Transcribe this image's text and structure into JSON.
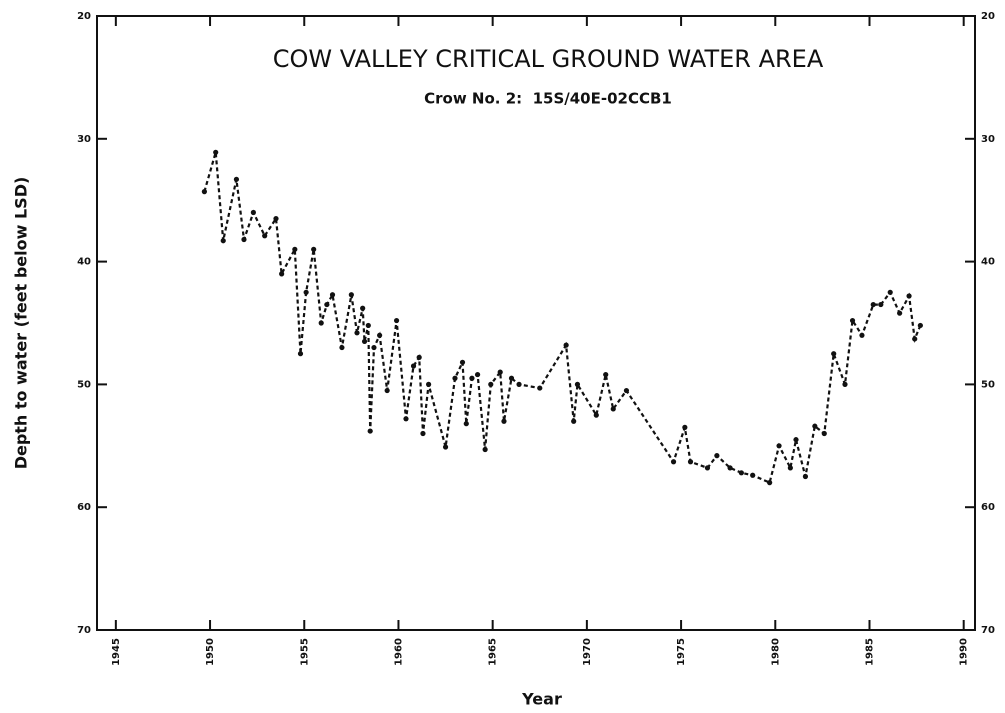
{
  "chart_data": {
    "type": "line",
    "title": "COW VALLEY CRITICAL GROUND WATER AREA",
    "subtitle": "Crow No. 2:  15S/40E-02CCB1",
    "x_label": "Year",
    "y_label": "Depth to water (feet below LSD)",
    "xlim": [
      1944,
      1990.6
    ],
    "xticks": [
      1945,
      1950,
      1955,
      1960,
      1965,
      1970,
      1975,
      1980,
      1985,
      1990
    ],
    "ylim": [
      20,
      70
    ],
    "yticks": [
      20,
      30,
      40,
      50,
      60,
      70
    ],
    "y_inverted": true,
    "grid": false,
    "series": [
      {
        "color": "#111111",
        "x": [
          1949.7,
          1950.3,
          1950.7,
          1951.4,
          1951.8,
          1952.3,
          1952.9,
          1953.5,
          1953.8,
          1954.5,
          1954.8,
          1955.1,
          1955.5,
          1955.9,
          1956.2,
          1956.5,
          1957.0,
          1957.5,
          1957.8,
          1958.1,
          1958.2,
          1958.4,
          1958.5,
          1958.7,
          1959.0,
          1959.4,
          1959.9,
          1960.4,
          1960.8,
          1961.1,
          1961.3,
          1961.6,
          1962.5,
          1963.0,
          1963.4,
          1963.6,
          1963.9,
          1964.2,
          1964.6,
          1964.9,
          1965.4,
          1965.6,
          1966.0,
          1966.4,
          1967.5,
          1968.9,
          1969.3,
          1969.5,
          1970.5,
          1971.0,
          1971.4,
          1972.1,
          1974.6,
          1975.2,
          1975.5,
          1976.4,
          1976.9,
          1977.6,
          1978.2,
          1978.8,
          1979.7,
          1980.2,
          1980.8,
          1981.1,
          1981.6,
          1982.1,
          1982.6,
          1983.1,
          1983.7,
          1984.1,
          1984.6,
          1985.2,
          1985.6,
          1986.1,
          1986.6,
          1987.1,
          1987.4,
          1987.7
        ],
        "values": [
          34.3,
          31.1,
          38.3,
          33.3,
          38.2,
          36.0,
          37.9,
          36.5,
          41.0,
          39.0,
          47.5,
          42.5,
          39.0,
          45.0,
          43.5,
          42.7,
          47.0,
          42.7,
          45.8,
          43.8,
          46.5,
          45.2,
          53.8,
          47.0,
          46.0,
          50.5,
          44.8,
          52.8,
          48.5,
          47.8,
          54.0,
          50.0,
          55.1,
          49.5,
          48.2,
          53.2,
          49.5,
          49.2,
          55.3,
          50.0,
          49.0,
          53.0,
          49.5,
          50.0,
          50.3,
          46.8,
          53.0,
          50.0,
          52.5,
          49.2,
          52.0,
          50.5,
          56.3,
          53.5,
          56.3,
          56.8,
          55.8,
          56.8,
          57.2,
          57.4,
          58.0,
          55.0,
          56.8,
          54.5,
          57.5,
          53.4,
          54.0,
          47.5,
          50.0,
          44.8,
          46.0,
          43.5,
          43.5,
          42.5,
          44.2,
          42.8,
          46.3,
          45.2
        ]
      }
    ]
  }
}
